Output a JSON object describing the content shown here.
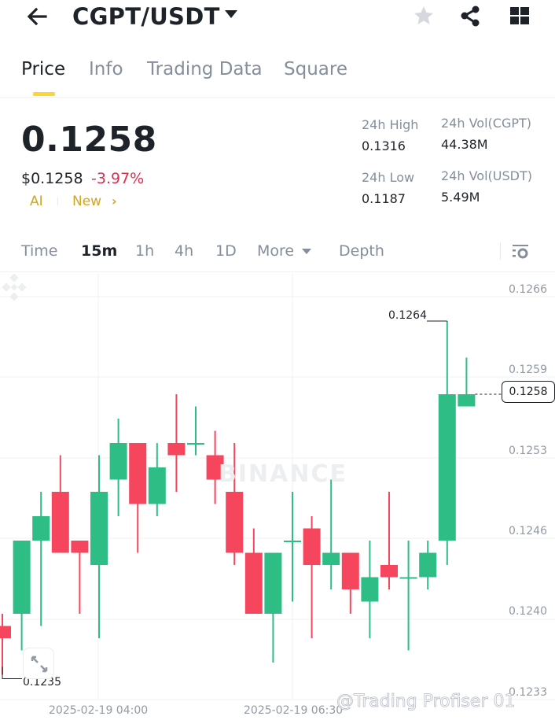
{
  "header": {
    "pair": "CGPT/USDT",
    "icons": [
      "back-arrow-icon",
      "caret-down-icon",
      "star-icon",
      "share-icon",
      "grid-icon"
    ]
  },
  "tabs": [
    {
      "label": "Price",
      "active": true
    },
    {
      "label": "Info",
      "active": false
    },
    {
      "label": "Trading Data",
      "active": false
    },
    {
      "label": "Square",
      "active": false
    }
  ],
  "ticker": {
    "last_price": "0.1258",
    "usd_price": "$0.1258",
    "change_pct": "-3.97%",
    "ai_tag": "AI",
    "new_tag": "New",
    "new_chevron": "›"
  },
  "stats": {
    "high_label": "24h High",
    "high_value": "0.1316",
    "low_label": "24h Low",
    "low_value": "0.1187",
    "vol_base_label": "24h Vol(CGPT)",
    "vol_base_value": "44.38M",
    "vol_quote_label": "24h Vol(USDT)",
    "vol_quote_value": "5.49M"
  },
  "intervals": {
    "items": [
      "Time",
      "15m",
      "1h",
      "4h",
      "1D",
      "More",
      "Depth"
    ],
    "active": "15m"
  },
  "colors": {
    "up": "#2ebd85",
    "down": "#f6465d",
    "accent": "#fcd535",
    "change_negative": "#d9304e"
  },
  "chart": {
    "watermark": "BINANCE",
    "credit": "@Trading Profiser 01",
    "high_marker": "0.1264",
    "low_marker": "0.1235",
    "current_price_tag": "0.1258"
  },
  "chart_data": {
    "type": "candlestick",
    "title": "CGPT/USDT 15m",
    "interval": "15m",
    "y_ticks": [
      "0.1266",
      "0.1259",
      "0.1253",
      "0.1246",
      "0.1240",
      "0.1233"
    ],
    "x_ticks": [
      "2025-02-19 04:00",
      "2025-02-19 06:30"
    ],
    "ylim": [
      0.1232,
      0.1267
    ],
    "grid": true,
    "annotations": {
      "high": 0.1264,
      "low": 0.1235,
      "last": 0.1258
    },
    "candles": [
      {
        "o": 0.1239,
        "h": 0.124,
        "l": 0.1235,
        "c": 0.1238
      },
      {
        "o": 0.124,
        "h": 0.1246,
        "l": 0.1237,
        "c": 0.1246
      },
      {
        "o": 0.1246,
        "h": 0.125,
        "l": 0.1239,
        "c": 0.1248
      },
      {
        "o": 0.125,
        "h": 0.1253,
        "l": 0.1245,
        "c": 0.1245
      },
      {
        "o": 0.1246,
        "h": 0.1246,
        "l": 0.124,
        "c": 0.1245
      },
      {
        "o": 0.1244,
        "h": 0.1253,
        "l": 0.1238,
        "c": 0.125
      },
      {
        "o": 0.1251,
        "h": 0.1256,
        "l": 0.1248,
        "c": 0.1254
      },
      {
        "o": 0.1254,
        "h": 0.1254,
        "l": 0.1245,
        "c": 0.1249
      },
      {
        "o": 0.1249,
        "h": 0.1254,
        "l": 0.1248,
        "c": 0.1252
      },
      {
        "o": 0.1254,
        "h": 0.1258,
        "l": 0.125,
        "c": 0.1253
      },
      {
        "o": 0.1254,
        "h": 0.1257,
        "l": 0.1253,
        "c": 0.1254
      },
      {
        "o": 0.1253,
        "h": 0.1255,
        "l": 0.1249,
        "c": 0.1251
      },
      {
        "o": 0.125,
        "h": 0.1254,
        "l": 0.1244,
        "c": 0.1245
      },
      {
        "o": 0.1245,
        "h": 0.1247,
        "l": 0.124,
        "c": 0.124
      },
      {
        "o": 0.124,
        "h": 0.1245,
        "l": 0.1236,
        "c": 0.1245
      },
      {
        "o": 0.1246,
        "h": 0.125,
        "l": 0.1241,
        "c": 0.1246
      },
      {
        "o": 0.1247,
        "h": 0.1248,
        "l": 0.1238,
        "c": 0.1244
      },
      {
        "o": 0.1244,
        "h": 0.1251,
        "l": 0.1242,
        "c": 0.1245
      },
      {
        "o": 0.1245,
        "h": 0.1245,
        "l": 0.124,
        "c": 0.1242
      },
      {
        "o": 0.1241,
        "h": 0.1246,
        "l": 0.1238,
        "c": 0.1243
      },
      {
        "o": 0.1244,
        "h": 0.125,
        "l": 0.1242,
        "c": 0.1243
      },
      {
        "o": 0.1243,
        "h": 0.1246,
        "l": 0.1237,
        "c": 0.1243
      },
      {
        "o": 0.1243,
        "h": 0.1246,
        "l": 0.1242,
        "c": 0.1245
      },
      {
        "o": 0.1246,
        "h": 0.1264,
        "l": 0.1244,
        "c": 0.1258
      },
      {
        "o": 0.1257,
        "h": 0.1261,
        "l": 0.1257,
        "c": 0.1258
      }
    ]
  }
}
